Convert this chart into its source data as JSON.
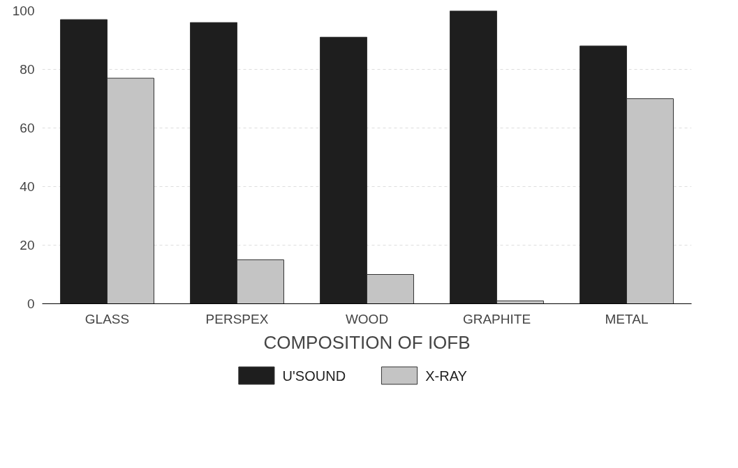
{
  "chart_data": {
    "type": "bar",
    "xlabel": "COMPOSITION OF IOFB",
    "categories": [
      "GLASS",
      "PERSPEX",
      "WOOD",
      "GRAPHITE",
      "METAL"
    ],
    "series": [
      {
        "name": "U'SOUND",
        "color": "#1e1e1e",
        "values": [
          97,
          96,
          91,
          100,
          88
        ]
      },
      {
        "name": "X-RAY",
        "color": "#c4c4c4",
        "values": [
          77,
          15,
          10,
          1,
          70
        ]
      }
    ],
    "ylim": [
      0,
      100
    ],
    "yticks": [
      0,
      20,
      40,
      60,
      80,
      100
    ],
    "grid": "y",
    "legend": "bottom"
  }
}
